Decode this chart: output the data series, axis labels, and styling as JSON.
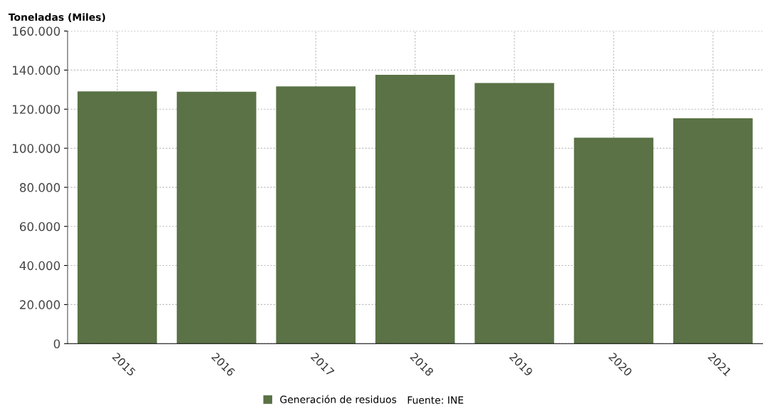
{
  "chart_data": {
    "type": "bar",
    "ylabel": "Toneladas (Miles)",
    "categories": [
      "2015",
      "2016",
      "2017",
      "2018",
      "2019",
      "2020",
      "2021"
    ],
    "series": [
      {
        "name": "Generación de residuos",
        "color": "#5a7245",
        "values": [
          129100,
          128900,
          131700,
          137600,
          133400,
          105400,
          115300
        ]
      }
    ],
    "ylim": [
      0,
      160000
    ],
    "yticks": [
      0,
      {
        "value": 20000,
        "label": "20.000"
      },
      {
        "value": 40000,
        "label": "40.000"
      },
      {
        "value": 60000,
        "label": "60.000"
      },
      {
        "value": 80000,
        "label": "80.000"
      },
      {
        "value": 100000,
        "label": "100.000"
      },
      {
        "value": 120000,
        "label": "120.000"
      },
      {
        "value": 140000,
        "label": "140.000"
      },
      {
        "value": 160000,
        "label": "160.000"
      }
    ],
    "grid": true,
    "legend": "bottom",
    "annotations": [
      "Fuente: INE"
    ]
  }
}
